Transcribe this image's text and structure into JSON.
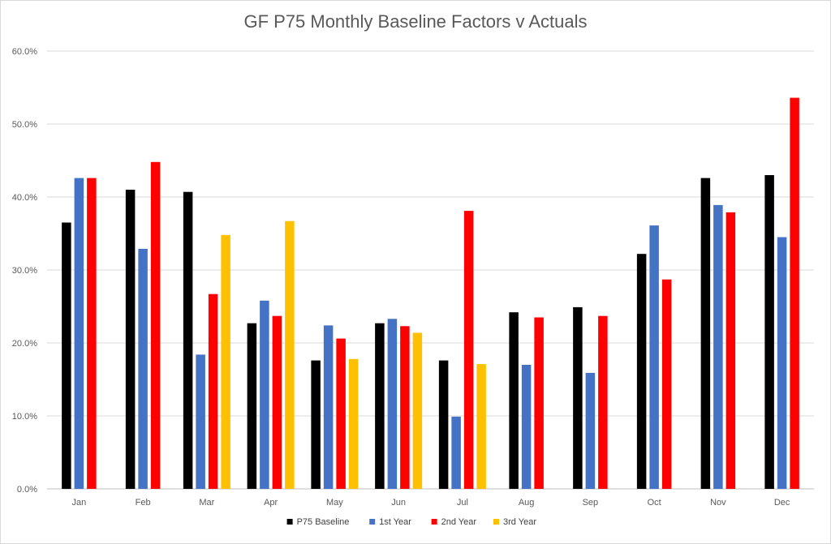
{
  "chart_data": {
    "type": "bar",
    "title": "GF P75 Monthly Baseline Factors v Actuals",
    "xlabel": "",
    "ylabel": "",
    "ylim": [
      0,
      60
    ],
    "y_ticks": [
      "0.0%",
      "10.0%",
      "20.0%",
      "30.0%",
      "40.0%",
      "50.0%",
      "60.0%"
    ],
    "grid": true,
    "legend_position": "bottom",
    "categories": [
      "Jan",
      "Feb",
      "Mar",
      "Apr",
      "May",
      "Jun",
      "Jul",
      "Aug",
      "Sep",
      "Oct",
      "Nov",
      "Dec"
    ],
    "series": [
      {
        "name": "P75 Baseline",
        "color": "#000000",
        "values": [
          36.5,
          41.0,
          40.7,
          22.7,
          17.6,
          22.7,
          17.6,
          24.2,
          24.9,
          32.2,
          42.6,
          43.0
        ]
      },
      {
        "name": "1st Year",
        "color": "#4472c4",
        "values": [
          42.6,
          32.9,
          18.4,
          25.8,
          22.4,
          23.3,
          9.9,
          17.0,
          15.9,
          36.1,
          38.9,
          34.5
        ]
      },
      {
        "name": "2nd Year",
        "color": "#ff0000",
        "values": [
          42.6,
          44.8,
          26.7,
          23.7,
          20.6,
          22.3,
          38.1,
          23.5,
          23.7,
          28.7,
          37.9,
          53.6
        ]
      },
      {
        "name": "3rd Year",
        "color": "#ffc000",
        "values": [
          null,
          null,
          34.8,
          36.7,
          17.8,
          21.4,
          17.1,
          null,
          null,
          null,
          null,
          null
        ]
      }
    ]
  }
}
